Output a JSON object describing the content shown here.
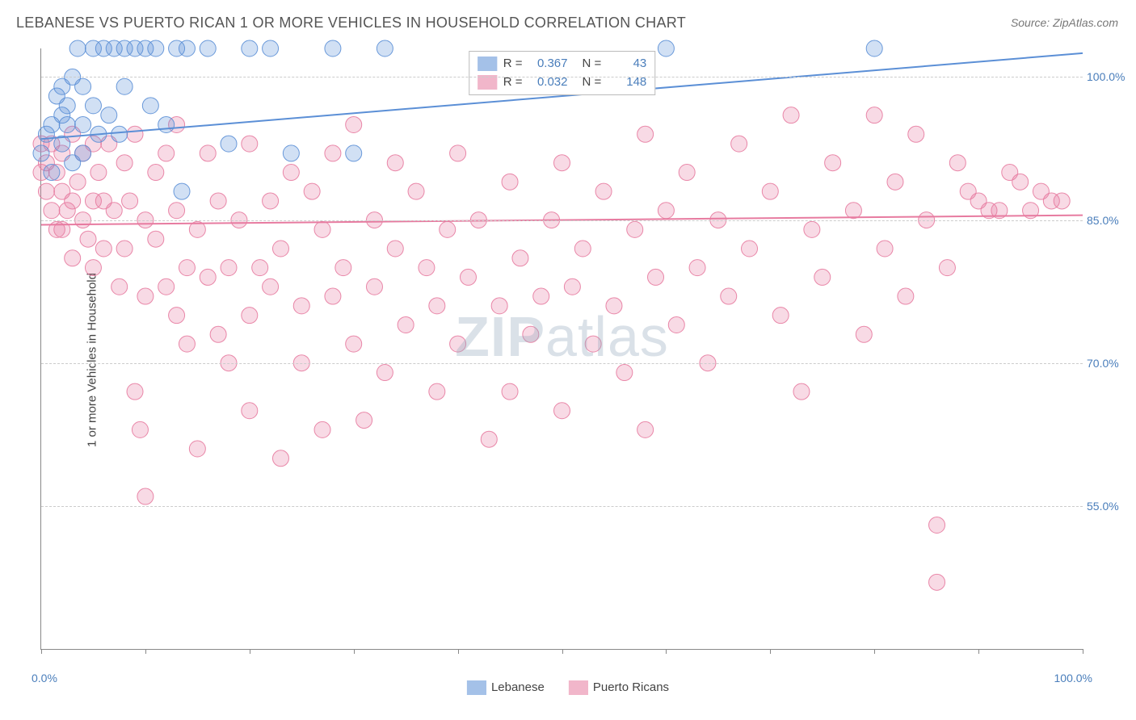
{
  "title": "LEBANESE VS PUERTO RICAN 1 OR MORE VEHICLES IN HOUSEHOLD CORRELATION CHART",
  "source": "Source: ZipAtlas.com",
  "y_axis_title": "1 or more Vehicles in Household",
  "watermark_bold": "ZIP",
  "watermark_rest": "atlas",
  "chart": {
    "type": "scatter",
    "background_color": "#ffffff",
    "grid_color": "#cccccc",
    "axis_color": "#888888",
    "value_color": "#4a7ebb",
    "label_color": "#444444",
    "title_fontsize": 18,
    "label_fontsize": 15,
    "tick_fontsize": 14,
    "xlim": [
      0,
      100
    ],
    "ylim": [
      40,
      103
    ],
    "yticks": [
      55,
      70,
      85,
      100
    ],
    "ytick_labels": [
      "55.0%",
      "70.0%",
      "85.0%",
      "100.0%"
    ],
    "xticks": [
      0,
      10,
      20,
      30,
      40,
      50,
      60,
      70,
      80,
      90,
      100
    ],
    "xtick_labels_shown": {
      "0": "0.0%",
      "100": "100.0%"
    },
    "marker_radius": 10,
    "marker_fill_opacity": 0.28,
    "marker_stroke_opacity": 0.9,
    "line_width": 2,
    "series": [
      {
        "name": "Lebanese",
        "color": "#5b8fd6",
        "R": "0.367",
        "N": "43",
        "trend": {
          "x1": 0,
          "y1": 93.5,
          "x2": 100,
          "y2": 102.5
        },
        "points": [
          [
            0,
            92
          ],
          [
            0.5,
            94
          ],
          [
            1,
            95
          ],
          [
            1,
            90
          ],
          [
            1.5,
            98
          ],
          [
            2,
            96
          ],
          [
            2,
            93
          ],
          [
            2,
            99
          ],
          [
            2.5,
            95
          ],
          [
            2.5,
            97
          ],
          [
            3,
            91
          ],
          [
            3,
            100
          ],
          [
            3.5,
            103
          ],
          [
            4,
            95
          ],
          [
            4,
            99
          ],
          [
            4,
            92
          ],
          [
            5,
            103
          ],
          [
            5,
            97
          ],
          [
            5.5,
            94
          ],
          [
            6,
            103
          ],
          [
            6.5,
            96
          ],
          [
            7,
            103
          ],
          [
            7.5,
            94
          ],
          [
            8,
            103
          ],
          [
            8,
            99
          ],
          [
            9,
            103
          ],
          [
            10,
            103
          ],
          [
            10.5,
            97
          ],
          [
            11,
            103
          ],
          [
            12,
            95
          ],
          [
            13,
            103
          ],
          [
            13.5,
            88
          ],
          [
            14,
            103
          ],
          [
            16,
            103
          ],
          [
            18,
            93
          ],
          [
            20,
            103
          ],
          [
            22,
            103
          ],
          [
            24,
            92
          ],
          [
            28,
            103
          ],
          [
            30,
            92
          ],
          [
            33,
            103
          ],
          [
            60,
            103
          ],
          [
            80,
            103
          ]
        ]
      },
      {
        "name": "Puerto Ricans",
        "color": "#e77ba0",
        "R": "0.032",
        "N": "148",
        "trend": {
          "x1": 0,
          "y1": 84.5,
          "x2": 100,
          "y2": 85.5
        },
        "points": [
          [
            0,
            93
          ],
          [
            0,
            90
          ],
          [
            0.5,
            91
          ],
          [
            0.5,
            88
          ],
          [
            1,
            93
          ],
          [
            1,
            86
          ],
          [
            1.5,
            90
          ],
          [
            1.5,
            84
          ],
          [
            2,
            92
          ],
          [
            2,
            88
          ],
          [
            2,
            84
          ],
          [
            2.5,
            86
          ],
          [
            3,
            94
          ],
          [
            3,
            87
          ],
          [
            3,
            81
          ],
          [
            3.5,
            89
          ],
          [
            4,
            92
          ],
          [
            4,
            85
          ],
          [
            4.5,
            83
          ],
          [
            5,
            93
          ],
          [
            5,
            87
          ],
          [
            5,
            80
          ],
          [
            5.5,
            90
          ],
          [
            6,
            87
          ],
          [
            6,
            82
          ],
          [
            6.5,
            93
          ],
          [
            7,
            86
          ],
          [
            7.5,
            78
          ],
          [
            8,
            91
          ],
          [
            8,
            82
          ],
          [
            8.5,
            87
          ],
          [
            9,
            94
          ],
          [
            9,
            67
          ],
          [
            9.5,
            63
          ],
          [
            10,
            85
          ],
          [
            10,
            77
          ],
          [
            10,
            56
          ],
          [
            11,
            90
          ],
          [
            11,
            83
          ],
          [
            12,
            92
          ],
          [
            12,
            78
          ],
          [
            13,
            95
          ],
          [
            13,
            86
          ],
          [
            13,
            75
          ],
          [
            14,
            80
          ],
          [
            14,
            72
          ],
          [
            15,
            84
          ],
          [
            15,
            61
          ],
          [
            16,
            92
          ],
          [
            16,
            79
          ],
          [
            17,
            87
          ],
          [
            17,
            73
          ],
          [
            18,
            80
          ],
          [
            18,
            70
          ],
          [
            19,
            85
          ],
          [
            20,
            93
          ],
          [
            20,
            75
          ],
          [
            20,
            65
          ],
          [
            21,
            80
          ],
          [
            22,
            87
          ],
          [
            22,
            78
          ],
          [
            23,
            82
          ],
          [
            23,
            60
          ],
          [
            24,
            90
          ],
          [
            25,
            76
          ],
          [
            25,
            70
          ],
          [
            26,
            88
          ],
          [
            27,
            84
          ],
          [
            27,
            63
          ],
          [
            28,
            92
          ],
          [
            28,
            77
          ],
          [
            29,
            80
          ],
          [
            30,
            95
          ],
          [
            30,
            72
          ],
          [
            31,
            64
          ],
          [
            32,
            85
          ],
          [
            32,
            78
          ],
          [
            33,
            69
          ],
          [
            34,
            91
          ],
          [
            34,
            82
          ],
          [
            35,
            74
          ],
          [
            36,
            88
          ],
          [
            37,
            80
          ],
          [
            38,
            76
          ],
          [
            38,
            67
          ],
          [
            39,
            84
          ],
          [
            40,
            92
          ],
          [
            40,
            72
          ],
          [
            41,
            79
          ],
          [
            42,
            85
          ],
          [
            43,
            62
          ],
          [
            44,
            76
          ],
          [
            45,
            89
          ],
          [
            45,
            67
          ],
          [
            46,
            81
          ],
          [
            47,
            73
          ],
          [
            48,
            77
          ],
          [
            49,
            85
          ],
          [
            50,
            91
          ],
          [
            50,
            65
          ],
          [
            51,
            78
          ],
          [
            52,
            82
          ],
          [
            53,
            72
          ],
          [
            54,
            88
          ],
          [
            55,
            76
          ],
          [
            56,
            69
          ],
          [
            57,
            84
          ],
          [
            58,
            94
          ],
          [
            58,
            63
          ],
          [
            59,
            79
          ],
          [
            60,
            86
          ],
          [
            61,
            74
          ],
          [
            62,
            90
          ],
          [
            63,
            80
          ],
          [
            64,
            70
          ],
          [
            65,
            85
          ],
          [
            66,
            77
          ],
          [
            67,
            93
          ],
          [
            68,
            82
          ],
          [
            70,
            88
          ],
          [
            71,
            75
          ],
          [
            72,
            96
          ],
          [
            73,
            67
          ],
          [
            74,
            84
          ],
          [
            75,
            79
          ],
          [
            76,
            91
          ],
          [
            78,
            86
          ],
          [
            79,
            73
          ],
          [
            80,
            96
          ],
          [
            81,
            82
          ],
          [
            82,
            89
          ],
          [
            83,
            77
          ],
          [
            84,
            94
          ],
          [
            85,
            85
          ],
          [
            86,
            53
          ],
          [
            87,
            80
          ],
          [
            88,
            91
          ],
          [
            89,
            88
          ],
          [
            90,
            87
          ],
          [
            91,
            86
          ],
          [
            92,
            86
          ],
          [
            93,
            90
          ],
          [
            94,
            89
          ],
          [
            95,
            86
          ],
          [
            96,
            88
          ],
          [
            97,
            87
          ],
          [
            98,
            87
          ],
          [
            86,
            47
          ]
        ]
      }
    ]
  },
  "top_legend": {
    "rows": [
      {
        "swatch_color": "#5b8fd6",
        "label_R": "R =",
        "val_R": "0.367",
        "label_N": "N =",
        "val_N": "43"
      },
      {
        "swatch_color": "#e77ba0",
        "label_R": "R =",
        "val_R": "0.032",
        "label_N": "N =",
        "val_N": "148"
      }
    ]
  },
  "bottom_legend": {
    "items": [
      {
        "swatch_color": "#5b8fd6",
        "label": "Lebanese"
      },
      {
        "swatch_color": "#e77ba0",
        "label": "Puerto Ricans"
      }
    ]
  }
}
